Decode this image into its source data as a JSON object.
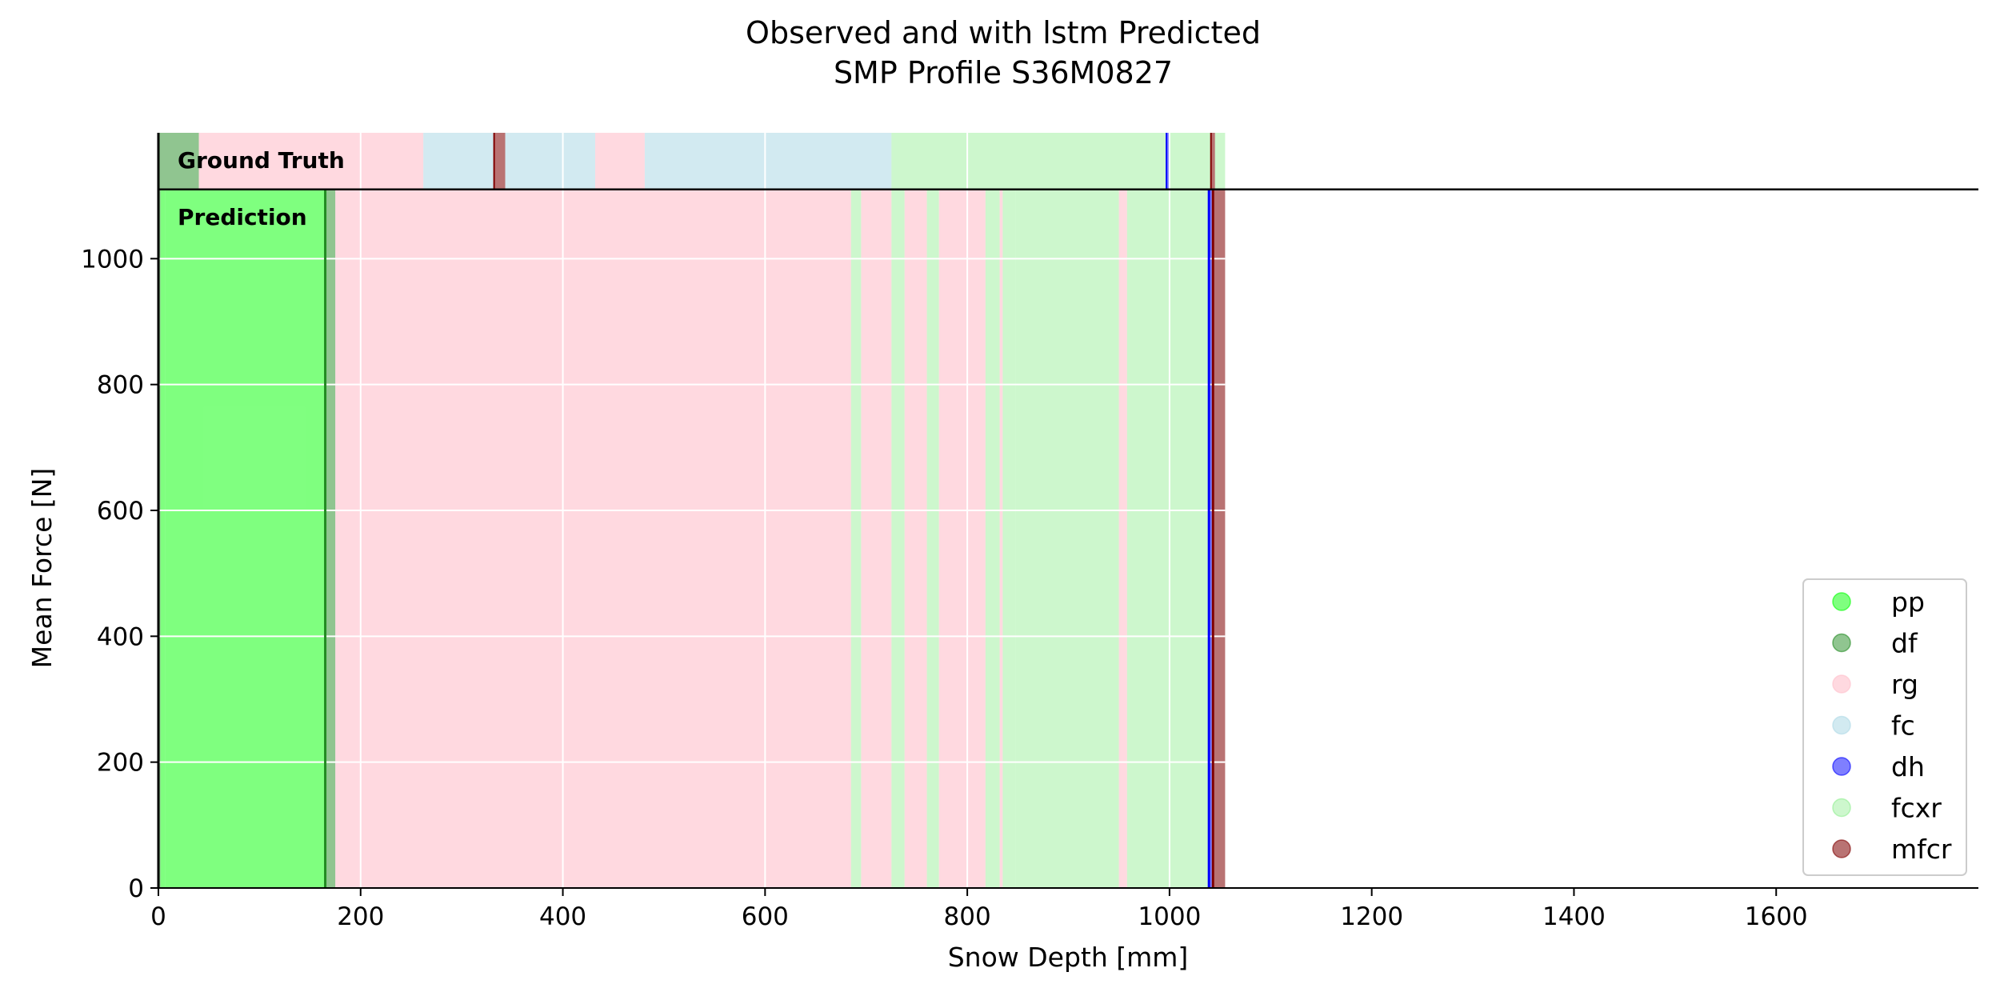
{
  "chart_data": {
    "type": "area",
    "title_line1": "Observed and with lstm Predicted",
    "title_line2": "SMP Profile S36M0827",
    "xlabel": "Snow Depth [mm]",
    "ylabel": "Mean Force [N]",
    "xlim": [
      0,
      1800
    ],
    "ylim": [
      0,
      1200
    ],
    "panel_split_y": 1110,
    "grid": true,
    "xticks": [
      0,
      200,
      400,
      600,
      800,
      1000,
      1200,
      1400,
      1600
    ],
    "yticks": [
      0,
      200,
      400,
      600,
      800,
      1000
    ],
    "ground_truth_label": "Ground Truth",
    "prediction_label": "Prediction",
    "legend_position": "lower right",
    "classes": [
      {
        "name": "pp",
        "color": "#00ff00",
        "alpha": 0.5
      },
      {
        "name": "df",
        "color": "#228b22",
        "alpha": 0.5
      },
      {
        "name": "rg",
        "color": "#ffc0cb",
        "alpha": 0.6
      },
      {
        "name": "fc",
        "color": "#add8e6",
        "alpha": 0.55
      },
      {
        "name": "dh",
        "color": "#0000ff",
        "alpha": 0.5
      },
      {
        "name": "fcxr",
        "color": "#90ee90",
        "alpha": 0.45
      },
      {
        "name": "mfcr",
        "color": "#800000",
        "alpha": 0.55
      }
    ],
    "ground_truth": [
      {
        "start": 0,
        "end": 40,
        "cls": "df"
      },
      {
        "start": 40,
        "end": 262,
        "cls": "rg"
      },
      {
        "start": 262,
        "end": 332,
        "cls": "fc"
      },
      {
        "start": 332,
        "end": 343,
        "cls": "mfcr"
      },
      {
        "start": 343,
        "end": 432,
        "cls": "fc"
      },
      {
        "start": 432,
        "end": 481,
        "cls": "rg"
      },
      {
        "start": 481,
        "end": 725,
        "cls": "fc"
      },
      {
        "start": 725,
        "end": 997,
        "cls": "fcxr"
      },
      {
        "start": 997,
        "end": 1000,
        "cls": "dh"
      },
      {
        "start": 1000,
        "end": 1041,
        "cls": "fcxr"
      },
      {
        "start": 1041,
        "end": 1045,
        "cls": "mfcr"
      },
      {
        "start": 1045,
        "end": 1055,
        "cls": "fcxr"
      }
    ],
    "prediction": [
      {
        "start": 0,
        "end": 2,
        "cls": "df"
      },
      {
        "start": 2,
        "end": 7,
        "cls": "pp"
      },
      {
        "start": 7,
        "end": 165,
        "cls": "pp"
      },
      {
        "start": 165,
        "end": 175,
        "cls": "df"
      },
      {
        "start": 175,
        "end": 685,
        "cls": "rg"
      },
      {
        "start": 685,
        "end": 695,
        "cls": "fcxr"
      },
      {
        "start": 695,
        "end": 725,
        "cls": "rg"
      },
      {
        "start": 725,
        "end": 738,
        "cls": "fcxr"
      },
      {
        "start": 738,
        "end": 760,
        "cls": "rg"
      },
      {
        "start": 760,
        "end": 772,
        "cls": "fcxr"
      },
      {
        "start": 772,
        "end": 818,
        "cls": "rg"
      },
      {
        "start": 818,
        "end": 832,
        "cls": "fcxr"
      },
      {
        "start": 832,
        "end": 835,
        "cls": "rg"
      },
      {
        "start": 835,
        "end": 848,
        "cls": "fcxr"
      },
      {
        "start": 848,
        "end": 950,
        "cls": "fcxr"
      },
      {
        "start": 950,
        "end": 958,
        "cls": "rg"
      },
      {
        "start": 958,
        "end": 1039,
        "cls": "fcxr"
      },
      {
        "start": 1039,
        "end": 1043,
        "cls": "dh"
      },
      {
        "start": 1043,
        "end": 1055,
        "cls": "mfcr"
      }
    ]
  }
}
